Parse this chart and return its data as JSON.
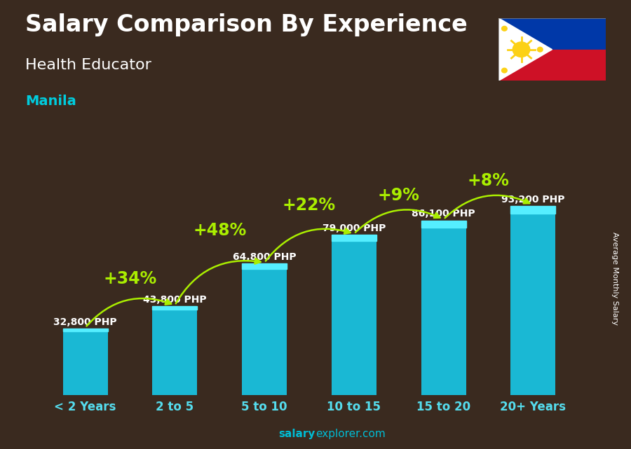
{
  "title": "Salary Comparison By Experience",
  "subtitle": "Health Educator",
  "city": "Manila",
  "categories": [
    "< 2 Years",
    "2 to 5",
    "5 to 10",
    "10 to 15",
    "15 to 20",
    "20+ Years"
  ],
  "values": [
    32800,
    43800,
    64800,
    79000,
    86100,
    93200
  ],
  "labels": [
    "32,800 PHP",
    "43,800 PHP",
    "64,800 PHP",
    "79,000 PHP",
    "86,100 PHP",
    "93,200 PHP"
  ],
  "pct_labels": [
    "+34%",
    "+48%",
    "+22%",
    "+9%",
    "+8%"
  ],
  "bar_color": "#1ab8d4",
  "pct_color": "#aaee00",
  "title_color": "#ffffff",
  "subtitle_color": "#ffffff",
  "city_color": "#00ccdd",
  "label_color": "#ffffff",
  "xlabel_color": "#55ddee",
  "footer_salary_color": "#00bcd4",
  "footer_explorer_color": "#00bcd4",
  "ylabel_text": "Average Monthly Salary",
  "bg_color": "#3a2a1f",
  "ylim": [
    0,
    115000
  ],
  "title_fontsize": 24,
  "subtitle_fontsize": 16,
  "city_fontsize": 14,
  "bar_label_fontsize": 10,
  "pct_fontsize": 17,
  "xlabel_fontsize": 12,
  "flag_blue": "#0038a8",
  "flag_red": "#ce1126",
  "flag_white": "#ffffff",
  "flag_yellow": "#fcd116"
}
